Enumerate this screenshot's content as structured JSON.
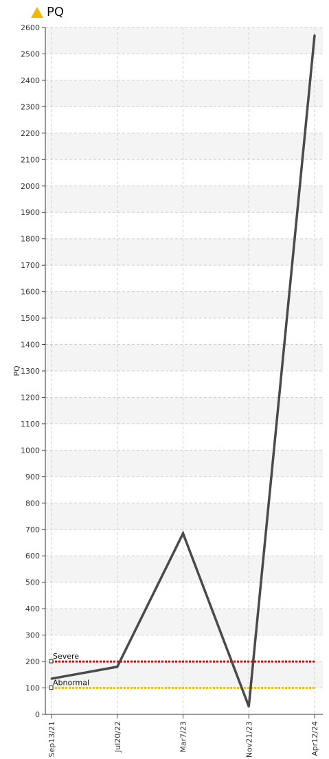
{
  "title": "PQ",
  "colors": {
    "warning_icon": "#F5B800",
    "series": "#4a4a4a",
    "severe": "#e00000",
    "abnormal": "#f2c200",
    "band": "#f4f4f4",
    "grid": "#cfcfcf"
  },
  "chart_data": {
    "type": "line",
    "title": "PQ",
    "ylabel": "PQ",
    "xlabel": "",
    "ylim": [
      0,
      2600
    ],
    "y_ticks": [
      0,
      100,
      200,
      300,
      400,
      500,
      600,
      700,
      800,
      900,
      1000,
      1100,
      1200,
      1300,
      1400,
      1500,
      1600,
      1700,
      1800,
      1900,
      2000,
      2100,
      2200,
      2300,
      2400,
      2500,
      2600
    ],
    "x": [
      "Sep13/21",
      "Jul20/22",
      "Mar7/23",
      "Nov21/23",
      "Apr12/24"
    ],
    "series": [
      {
        "values": [
          135,
          180,
          685,
          30,
          2570
        ]
      }
    ],
    "reference_lines": [
      {
        "name": "Severe",
        "value": 200,
        "color": "#e00000"
      },
      {
        "name": "Abnormal",
        "value": 100,
        "color": "#f2c200"
      }
    ],
    "grid": true
  }
}
